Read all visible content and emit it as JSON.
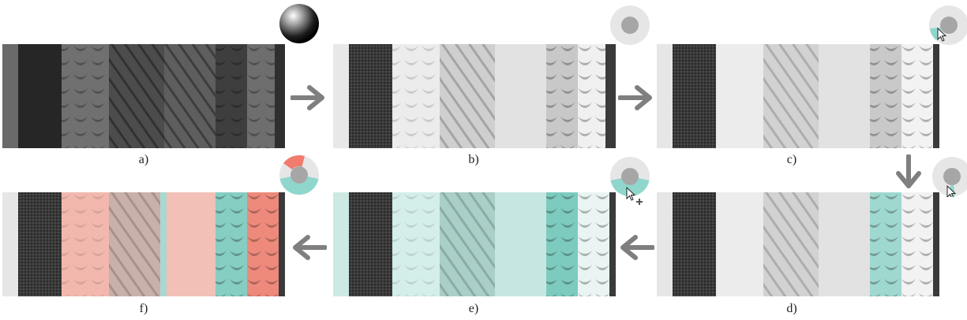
{
  "panels": [
    {
      "id": "a",
      "caption": "a)"
    },
    {
      "id": "b",
      "caption": "b)"
    },
    {
      "id": "c",
      "caption": "c)"
    },
    {
      "id": "d",
      "caption": "d)"
    },
    {
      "id": "e",
      "caption": "e)"
    },
    {
      "id": "f",
      "caption": "f)"
    }
  ],
  "colors": {
    "arrow": "#7f7f7f",
    "teal": "#8fd6cc",
    "red": "#f07b6e",
    "widget_bg": "#e6e6e6",
    "widget_center": "#a6a6a6"
  },
  "icons": [
    "sphere-icon",
    "color-wheel-icon",
    "cursor-icon",
    "arrow-right-icon",
    "arrow-down-icon",
    "arrow-left-icon",
    "plus-icon"
  ]
}
